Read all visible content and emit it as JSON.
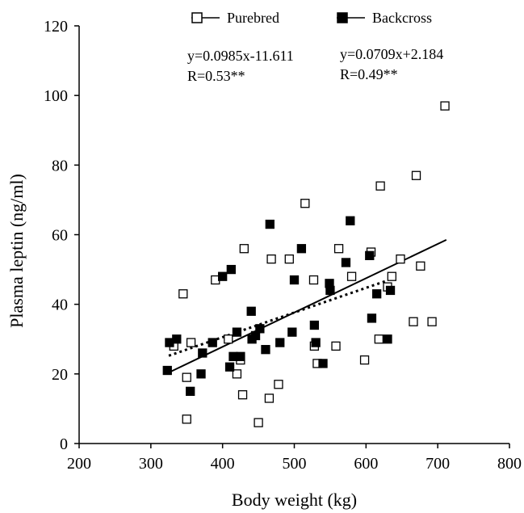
{
  "chart_data": {
    "type": "scatter",
    "xlabel": "Body weight (kg)",
    "ylabel": "Plasma leptin (ng/ml)",
    "xlim": [
      200,
      800
    ],
    "ylim": [
      0,
      120
    ],
    "x_ticks": [
      "200",
      "300",
      "400",
      "500",
      "600",
      "700",
      "800"
    ],
    "y_ticks": [
      "0",
      "20",
      "40",
      "60",
      "80",
      "100",
      "120"
    ],
    "grid": false,
    "legend_position": "top",
    "series": [
      {
        "name": "Purebred",
        "marker": "open-square",
        "color": "#000000",
        "points": [
          [
            332,
            28
          ],
          [
            345,
            43
          ],
          [
            350,
            7
          ],
          [
            350,
            19
          ],
          [
            356,
            29
          ],
          [
            390,
            47
          ],
          [
            408,
            30
          ],
          [
            420,
            20
          ],
          [
            425,
            24
          ],
          [
            428,
            14
          ],
          [
            430,
            56
          ],
          [
            450,
            6
          ],
          [
            465,
            13
          ],
          [
            468,
            53
          ],
          [
            478,
            17
          ],
          [
            493,
            53
          ],
          [
            515,
            69
          ],
          [
            527,
            47
          ],
          [
            528,
            28
          ],
          [
            532,
            23
          ],
          [
            558,
            28
          ],
          [
            562,
            56
          ],
          [
            580,
            48
          ],
          [
            598,
            24
          ],
          [
            607,
            55
          ],
          [
            618,
            30
          ],
          [
            620,
            74
          ],
          [
            630,
            45
          ],
          [
            636,
            48
          ],
          [
            648,
            53
          ],
          [
            666,
            35
          ],
          [
            670,
            77
          ],
          [
            676,
            51
          ],
          [
            692,
            35
          ],
          [
            710,
            97
          ]
        ]
      },
      {
        "name": "Backcross",
        "marker": "filled-square",
        "color": "#000000",
        "points": [
          [
            323,
            21
          ],
          [
            326,
            29
          ],
          [
            336,
            30
          ],
          [
            355,
            15
          ],
          [
            370,
            20
          ],
          [
            372,
            26
          ],
          [
            386,
            29
          ],
          [
            400,
            48
          ],
          [
            410,
            22
          ],
          [
            412,
            50
          ],
          [
            415,
            25
          ],
          [
            420,
            32
          ],
          [
            425,
            25
          ],
          [
            440,
            38
          ],
          [
            441,
            30
          ],
          [
            446,
            31
          ],
          [
            452,
            33
          ],
          [
            460,
            27
          ],
          [
            466,
            63
          ],
          [
            480,
            29
          ],
          [
            497,
            32
          ],
          [
            500,
            47
          ],
          [
            510,
            56
          ],
          [
            528,
            34
          ],
          [
            530,
            29
          ],
          [
            540,
            23
          ],
          [
            549,
            46
          ],
          [
            550,
            44
          ],
          [
            572,
            52
          ],
          [
            578,
            64
          ],
          [
            605,
            54
          ],
          [
            608,
            36
          ],
          [
            615,
            43
          ],
          [
            630,
            30
          ],
          [
            634,
            44
          ]
        ]
      }
    ],
    "trendlines": [
      {
        "series": "Purebred",
        "style": "solid",
        "slope": 0.0985,
        "intercept": -11.611,
        "x_range": [
          325,
          712
        ]
      },
      {
        "series": "Backcross",
        "style": "dotted",
        "slope": 0.0709,
        "intercept": 2.184,
        "x_range": [
          325,
          630
        ]
      }
    ],
    "annotations": {
      "purebred_equation": "y=0.0985x-11.611",
      "purebred_r": "R=0.53**",
      "backcross_equation": "y=0.0709x+2.184",
      "backcross_r": "R=0.49**"
    }
  }
}
